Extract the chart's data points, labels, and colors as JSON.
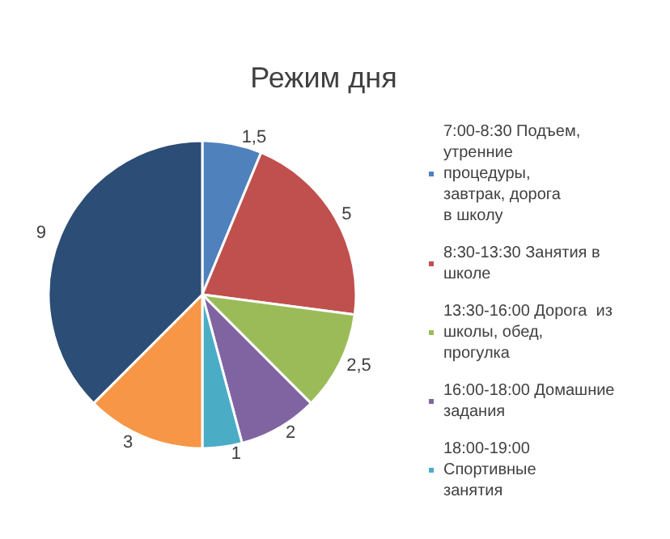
{
  "chart_data": {
    "type": "pie",
    "title": "Режим дня",
    "categories": [
      "7:00-8:30 Подъем, утренние процедуры, завтрак, дорога в школу",
      "8:30-13:30 Занятия в школе",
      "13:30-16:00 Дорога  из школы, обед, прогулка",
      "16:00-18:00 Домашние задания",
      "18:00-19:00 Спортивные занятия",
      null,
      null
    ],
    "values": [
      1.5,
      5,
      2.5,
      2,
      1,
      3,
      9
    ],
    "value_labels": [
      "1,5",
      "5",
      "2,5",
      "2",
      "1",
      "3",
      "9"
    ],
    "colors": [
      "#4f81bd",
      "#c0504d",
      "#9bbb59",
      "#8064a2",
      "#4bacc6",
      "#f79646",
      "#2c4d75"
    ],
    "legend": "right"
  }
}
